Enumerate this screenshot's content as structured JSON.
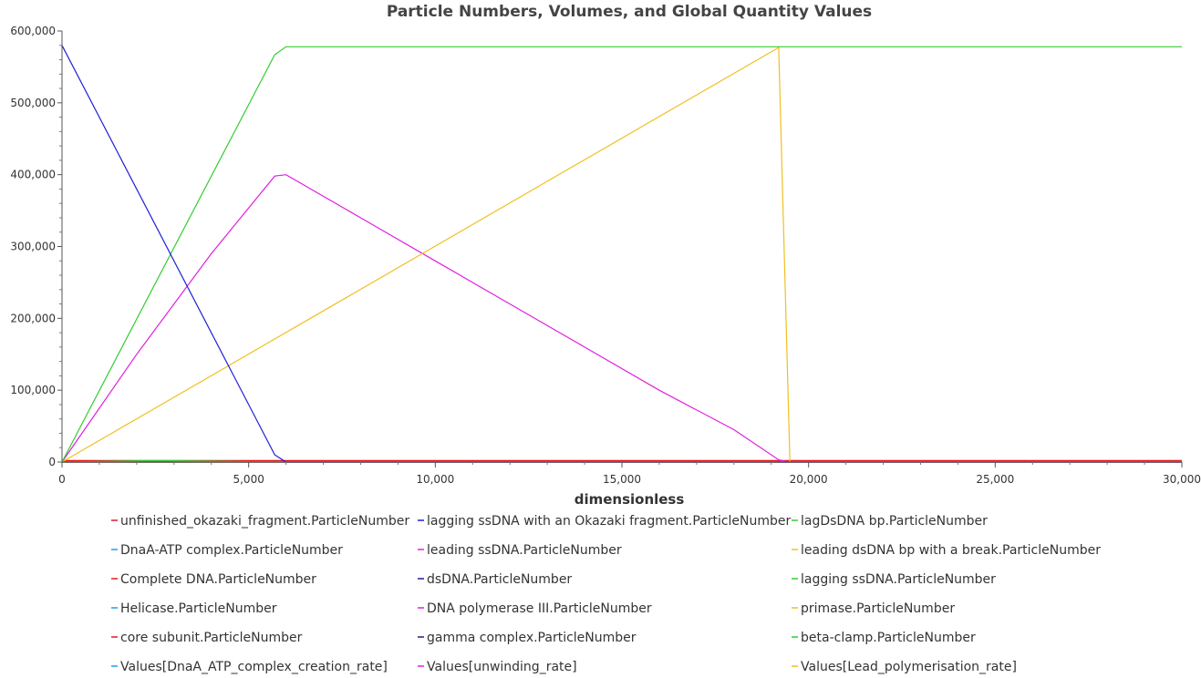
{
  "chart_data": {
    "type": "line",
    "title": "Particle Numbers, Volumes, and Global Quantity Values",
    "xlabel": "dimensionless",
    "ylabel": "",
    "xlim": [
      0,
      30000
    ],
    "ylim": [
      0,
      600000
    ],
    "x_ticks": [
      "0",
      "5,000",
      "10,000",
      "15,000",
      "20,000",
      "25,000",
      "30,000"
    ],
    "x_tick_values": [
      0,
      5000,
      10000,
      15000,
      20000,
      25000,
      30000
    ],
    "y_ticks": [
      "0",
      "100,000",
      "200,000",
      "300,000",
      "400,000",
      "500,000",
      "600,000"
    ],
    "y_tick_values": [
      0,
      100000,
      200000,
      300000,
      400000,
      500000,
      600000
    ],
    "grid": false,
    "legend_position": "bottom",
    "series": [
      {
        "name": "unfinished_okazaki_fragment.ParticleNumber",
        "color": "#e31a1c",
        "x": [
          0,
          30000
        ],
        "y": [
          1500,
          1500
        ]
      },
      {
        "name": "lagging ssDNA with an Okazaki fragment.ParticleNumber",
        "color": "#1f1fd6",
        "x": [
          0,
          5700,
          6000,
          30000
        ],
        "y": [
          580000,
          10000,
          0,
          0
        ]
      },
      {
        "name": "lagDsDNA bp.ParticleNumber",
        "color": "#33cc33",
        "x": [
          0,
          5700,
          6000,
          30000
        ],
        "y": [
          0,
          567000,
          578000,
          578000
        ]
      },
      {
        "name": "DnaA-ATP complex.ParticleNumber",
        "color": "#1fa0e0",
        "x": [
          0,
          30000
        ],
        "y": [
          0,
          0
        ]
      },
      {
        "name": "leading ssDNA.ParticleNumber",
        "color": "#e020e0",
        "x": [
          0,
          2000,
          4000,
          5700,
          6000,
          8000,
          10000,
          12000,
          14000,
          16000,
          18000,
          19200,
          19500,
          30000
        ],
        "y": [
          0,
          150000,
          290000,
          398000,
          400000,
          340000,
          280000,
          220000,
          160000,
          100000,
          45000,
          3000,
          0,
          0
        ]
      },
      {
        "name": "leading dsDNA bp with a break.ParticleNumber",
        "color": "#f0c020",
        "x": [
          0,
          19200,
          19500,
          30000
        ],
        "y": [
          0,
          577000,
          0,
          0
        ]
      },
      {
        "name": "Complete DNA.ParticleNumber",
        "color": "#e31a1c",
        "x": [
          0,
          30000
        ],
        "y": [
          2000,
          2000
        ]
      },
      {
        "name": "dsDNA.ParticleNumber",
        "color": "#1f1f8c",
        "x": [
          0,
          30000
        ],
        "y": [
          0,
          0
        ]
      },
      {
        "name": "lagging ssDNA.ParticleNumber",
        "color": "#33cc33",
        "x": [
          0,
          2500,
          5000,
          30000
        ],
        "y": [
          0,
          2000,
          500,
          500
        ]
      },
      {
        "name": "Helicase.ParticleNumber",
        "color": "#1fa0e0",
        "x": [
          0,
          30000
        ],
        "y": [
          0,
          0
        ]
      },
      {
        "name": "DNA polymerase III.ParticleNumber",
        "color": "#e020e0",
        "x": [
          0,
          30000
        ],
        "y": [
          0,
          0
        ]
      },
      {
        "name": "primase.ParticleNumber",
        "color": "#f0c020",
        "x": [
          0,
          30000
        ],
        "y": [
          0,
          0
        ]
      },
      {
        "name": "core subunit.ParticleNumber",
        "color": "#e31a1c",
        "x": [
          0,
          30000
        ],
        "y": [
          0,
          0
        ]
      },
      {
        "name": "gamma complex.ParticleNumber",
        "color": "#1f1f8c",
        "x": [
          0,
          30000
        ],
        "y": [
          0,
          0
        ]
      },
      {
        "name": "beta-clamp.ParticleNumber",
        "color": "#33cc33",
        "x": [
          0,
          30000
        ],
        "y": [
          0,
          0
        ]
      },
      {
        "name": "Values[DnaA_ATP_complex_creation_rate]",
        "color": "#1fa0e0",
        "x": [
          0,
          30000
        ],
        "y": [
          0,
          0
        ]
      },
      {
        "name": "Values[unwinding_rate]",
        "color": "#e020e0",
        "x": [
          0,
          30000
        ],
        "y": [
          0,
          0
        ]
      },
      {
        "name": "Values[Lead_polymerisation_rate]",
        "color": "#f0c020",
        "x": [
          0,
          30000
        ],
        "y": [
          0,
          0
        ]
      }
    ]
  }
}
